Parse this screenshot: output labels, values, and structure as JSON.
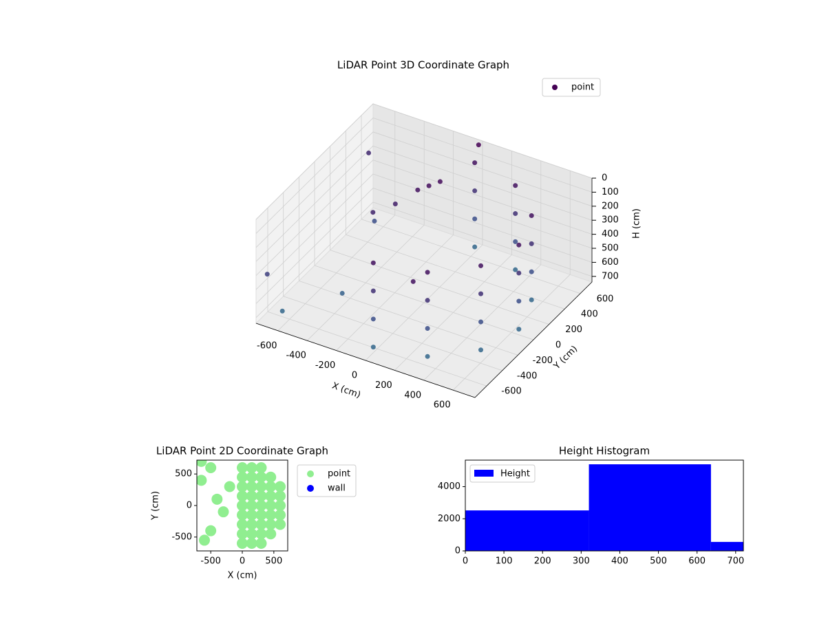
{
  "chart_data": [
    {
      "type": "scatter3d",
      "title": "LiDAR Point 3D Coordinate Graph",
      "x_label": "X (cm)",
      "y_label": "Y (cm)",
      "z_label": "H (cm)",
      "xlim": [
        -750,
        750
      ],
      "ylim": [
        -750,
        750
      ],
      "zlim": [
        740,
        0
      ],
      "xticks": [
        -600,
        -400,
        -200,
        0,
        200,
        400,
        600
      ],
      "yticks": [
        -600,
        -400,
        -200,
        0,
        200,
        400,
        600
      ],
      "zticks": [
        0,
        100,
        200,
        300,
        400,
        500,
        600,
        700
      ],
      "grid": true,
      "legend": "upper right",
      "series": [
        {
          "name": "point",
          "colormap": "viridis",
          "x": [
            0,
            0,
            0,
            0,
            325,
            325,
            325,
            325,
            563,
            563,
            563,
            563,
            650,
            650,
            650,
            650,
            563,
            563,
            563,
            563,
            325,
            325,
            325,
            325,
            0,
            0,
            0,
            0,
            -100,
            -150,
            -50,
            -250,
            -350,
            -700,
            -650,
            -700,
            -500,
            0,
            300,
            -400
          ],
          "y": [
            -650,
            -650,
            -650,
            -650,
            -563,
            -563,
            -563,
            -563,
            -325,
            -325,
            -325,
            -325,
            0,
            0,
            0,
            0,
            325,
            325,
            325,
            325,
            563,
            563,
            563,
            563,
            650,
            650,
            650,
            650,
            250,
            200,
            300,
            100,
            0,
            600,
            -600,
            -700,
            300,
            700,
            -700,
            -300
          ],
          "z": [
            100,
            300,
            500,
            700,
            100,
            300,
            500,
            700,
            100,
            300,
            500,
            700,
            100,
            300,
            500,
            700,
            100,
            300,
            500,
            700,
            100,
            300,
            500,
            700,
            100,
            300,
            500,
            700,
            80,
            100,
            60,
            180,
            220,
            250,
            700,
            400,
            500,
            0,
            100,
            650
          ]
        }
      ]
    },
    {
      "type": "scatter",
      "title": "LiDAR Point 2D Coordinate Graph",
      "x_label": "X (cm)",
      "y_label": "Y (cm)",
      "xlim": [
        -720,
        720
      ],
      "ylim": [
        -720,
        720
      ],
      "xticks": [
        -500,
        0,
        500
      ],
      "yticks": [
        -500,
        0,
        500
      ],
      "legend": "outside right",
      "series": [
        {
          "name": "point",
          "color": "#90ee90",
          "x": [
            0,
            0,
            0,
            0,
            0,
            0,
            0,
            0,
            0,
            150,
            150,
            150,
            150,
            150,
            150,
            150,
            150,
            150,
            300,
            300,
            300,
            300,
            300,
            300,
            300,
            300,
            300,
            450,
            450,
            450,
            450,
            450,
            450,
            450,
            600,
            600,
            600,
            600,
            600,
            -650,
            -500,
            -400,
            -300,
            -500,
            -600,
            -200,
            -650
          ],
          "y": [
            -600,
            -450,
            -300,
            -150,
            0,
            150,
            300,
            450,
            600,
            -600,
            -450,
            -300,
            -150,
            0,
            150,
            300,
            450,
            600,
            -600,
            -450,
            -300,
            -150,
            0,
            150,
            300,
            450,
            600,
            -450,
            -300,
            -150,
            0,
            150,
            300,
            450,
            -300,
            -150,
            0,
            150,
            300,
            400,
            600,
            100,
            -100,
            -400,
            -550,
            300,
            700
          ]
        },
        {
          "name": "wall",
          "color": "#0000ff",
          "x": [],
          "y": []
        }
      ]
    },
    {
      "type": "histogram",
      "title": "Height Histogram",
      "name": "Height",
      "color": "#0000ff",
      "bins": [
        0,
        320,
        636,
        720
      ],
      "counts": [
        2520,
        5390,
        560
      ],
      "xlim": [
        0,
        720
      ],
      "xticks": [
        0,
        100,
        200,
        300,
        400,
        500,
        600,
        700
      ],
      "ylim": [
        0,
        5650
      ],
      "yticks": [
        0,
        2000,
        4000
      ],
      "legend": "upper left"
    }
  ]
}
